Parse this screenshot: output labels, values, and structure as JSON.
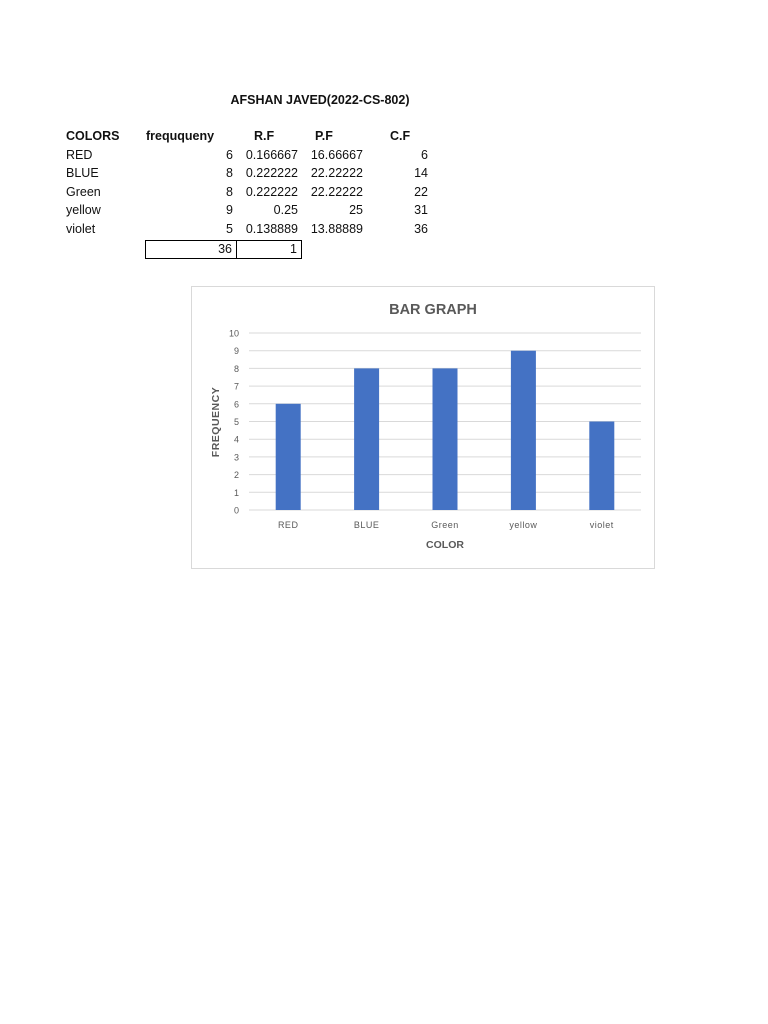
{
  "heading": "AFSHAN JAVED(2022-CS-802)",
  "table": {
    "headers": [
      "COLORS",
      "freququeny",
      "R.F",
      "P.F",
      "C.F"
    ],
    "rows": [
      [
        "RED",
        "6",
        "0.166667",
        "16.66667",
        "6"
      ],
      [
        "BLUE",
        "8",
        "0.222222",
        "22.22222",
        "14"
      ],
      [
        "Green",
        "8",
        "0.222222",
        "22.22222",
        "22"
      ],
      [
        "yellow",
        "9",
        "0.25",
        "25",
        "31"
      ],
      [
        "violet",
        "5",
        "0.138889",
        "13.88889",
        "36"
      ]
    ],
    "totals": {
      "frequency": "36",
      "rf": "1"
    }
  },
  "chart_data": {
    "type": "bar",
    "title": "BAR GRAPH",
    "xlabel": "COLOR",
    "ylabel": "FREQUENCY",
    "categories": [
      "RED",
      "BLUE",
      "Green",
      "yellow",
      "violet"
    ],
    "values": [
      6,
      8,
      8,
      9,
      5
    ],
    "ylim": [
      0,
      10
    ],
    "yticks": [
      "0",
      "1",
      "2",
      "3",
      "4",
      "5",
      "6",
      "7",
      "8",
      "9",
      "10"
    ],
    "grid": true,
    "legend": "none",
    "bar_color": "#4472c4"
  }
}
